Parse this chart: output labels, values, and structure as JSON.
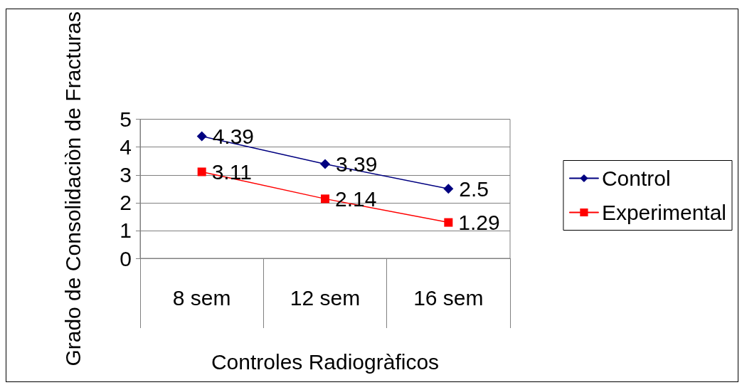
{
  "chart_data": {
    "type": "line",
    "xlabel": "Controles Radiogràficos",
    "ylabel": "Grado de Consolidaciòn de Fracturas",
    "categories": [
      "8 sem",
      "12 sem",
      "16 sem"
    ],
    "series": [
      {
        "name": "Control",
        "color": "#000080",
        "marker": "diamond",
        "values": [
          4.39,
          3.39,
          2.5
        ]
      },
      {
        "name": "Experimental",
        "color": "#ff0000",
        "marker": "square",
        "values": [
          3.11,
          2.14,
          1.29
        ]
      }
    ],
    "ylim": [
      0,
      5
    ],
    "yticks": [
      0,
      1,
      2,
      3,
      4,
      5
    ],
    "grid": "y",
    "legend": "right",
    "data_labels": true,
    "line_style": "solid"
  }
}
